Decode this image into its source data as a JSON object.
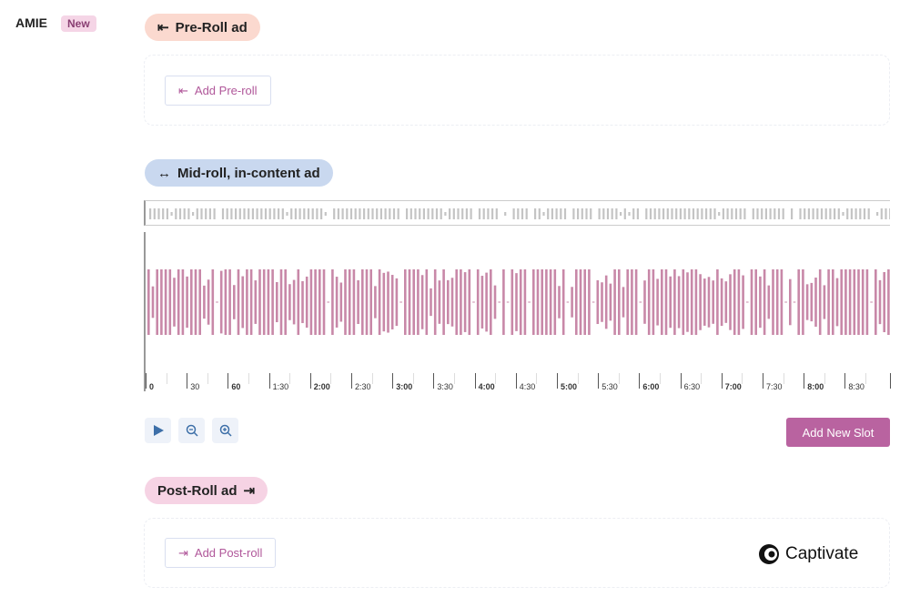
{
  "user": {
    "name": "AMIE",
    "badge": "New"
  },
  "pre_roll": {
    "title": "Pre-Roll ad",
    "icon": "arrow-left-bar-icon",
    "add_label": "Add Pre-roll"
  },
  "mid_roll": {
    "title": "Mid-roll, in-content ad",
    "icon": "arrows-left-right-icon",
    "timeline_labels": [
      "0",
      "30",
      "60",
      "1:30",
      "2:00",
      "2:30",
      "3:00",
      "3:30",
      "4:00",
      "4:30",
      "5:00",
      "5:30",
      "6:00",
      "6:30",
      "7:00",
      "7:30",
      "8:00",
      "8:30"
    ],
    "waveform_color": "#c888a8",
    "overview_color": "#c4c4c4"
  },
  "controls": {
    "play": "play-icon",
    "zoom_out": "zoom-out-icon",
    "zoom_in": "zoom-in-icon",
    "add_slot_label": "Add New Slot",
    "accent": "#b963a0"
  },
  "post_roll": {
    "title": "Post-Roll ad",
    "icon": "bar-arrow-right-icon",
    "add_label": "Add Post-roll"
  },
  "brand": {
    "name": "Captivate"
  }
}
